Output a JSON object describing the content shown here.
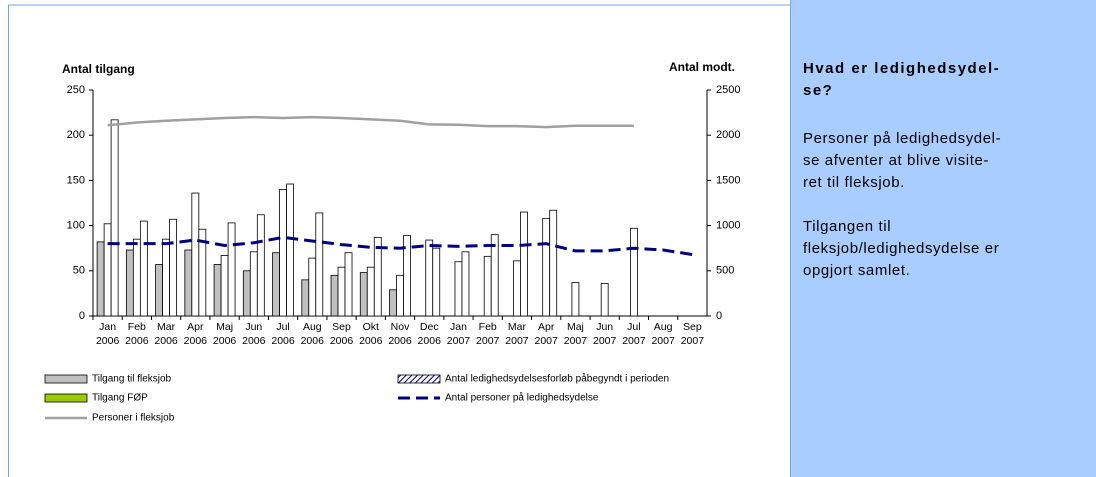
{
  "chart_data": {
    "type": "bar",
    "y_label": "Antal tilgang",
    "y2_label": "Antal modt.",
    "categories": [
      [
        "Jan",
        "2006"
      ],
      [
        "Feb",
        "2006"
      ],
      [
        "Mar",
        "2006"
      ],
      [
        "Apr",
        "2006"
      ],
      [
        "Maj",
        "2006"
      ],
      [
        "Jun",
        "2006"
      ],
      [
        "Jul",
        "2006"
      ],
      [
        "Aug",
        "2006"
      ],
      [
        "Sep",
        "2006"
      ],
      [
        "Okt",
        "2006"
      ],
      [
        "Nov",
        "2006"
      ],
      [
        "Dec",
        "2006"
      ],
      [
        "Jan",
        "2007"
      ],
      [
        "Feb",
        "2007"
      ],
      [
        "Mar",
        "2007"
      ],
      [
        "Apr",
        "2007"
      ],
      [
        "Maj",
        "2007"
      ],
      [
        "Jun",
        "2007"
      ],
      [
        "Jul",
        "2007"
      ],
      [
        "Aug",
        "2007"
      ],
      [
        "Sep",
        "2007"
      ]
    ],
    "ylim": [
      0,
      250
    ],
    "yticks": [
      0,
      50,
      100,
      150,
      200,
      250
    ],
    "y2lim": [
      0,
      2500
    ],
    "y2ticks": [
      0,
      500,
      1000,
      1500,
      2000,
      2500
    ],
    "legend": "bottom",
    "series": [
      {
        "name": "Tilgang til fleksjob",
        "type": "bar",
        "color": "#c0c0c0",
        "values": [
          82,
          73,
          57,
          73,
          57,
          50,
          70,
          40,
          45,
          48,
          29,
          null,
          null,
          null,
          null,
          null,
          null,
          null,
          null,
          null,
          null
        ]
      },
      {
        "name": "Tilgang FØP",
        "type": "bar",
        "color": "#ffffff",
        "legend_color": "#99cc00",
        "values": [
          102,
          85,
          85,
          136,
          67,
          71,
          140,
          64,
          54,
          54,
          45,
          84,
          60,
          66,
          61,
          108,
          37,
          36,
          97,
          null,
          null
        ]
      },
      {
        "name": "Antal ledighedsydelsesforløb påbegyndt i perioden",
        "type": "bar",
        "color": "#ffffff",
        "pattern": "hatch",
        "values": [
          217,
          105,
          107,
          96,
          103,
          112,
          146,
          114,
          70,
          87,
          89,
          75,
          71,
          90,
          115,
          117,
          null,
          null,
          null,
          null,
          null
        ]
      },
      {
        "name": "Personer i fleksjob",
        "type": "line",
        "axis": "y2",
        "color": "#a0a0a0",
        "values": [
          2110,
          2140,
          2160,
          2175,
          2190,
          2200,
          2190,
          2200,
          2190,
          2175,
          2160,
          2120,
          2115,
          2100,
          2100,
          2090,
          2105,
          2105,
          2105,
          null,
          null
        ]
      },
      {
        "name": "Antal personer på ledighedsydelse",
        "type": "line",
        "axis": "y2",
        "color": "#000080",
        "dashed": true,
        "values": [
          800,
          800,
          800,
          840,
          780,
          810,
          870,
          830,
          790,
          760,
          750,
          780,
          770,
          780,
          780,
          800,
          720,
          720,
          750,
          730,
          680
        ]
      }
    ]
  },
  "panel": {
    "heading": [
      "Hvad er ledighedsydel-",
      "se?"
    ],
    "paragraphs": [
      [
        "Personer på ledighedsydel-",
        "se afventer at blive visite-",
        "ret til fleksjob."
      ],
      [
        "Tilgangen til",
        "fleksjob/ledighedsydelse er",
        "opgjort samlet."
      ]
    ]
  }
}
